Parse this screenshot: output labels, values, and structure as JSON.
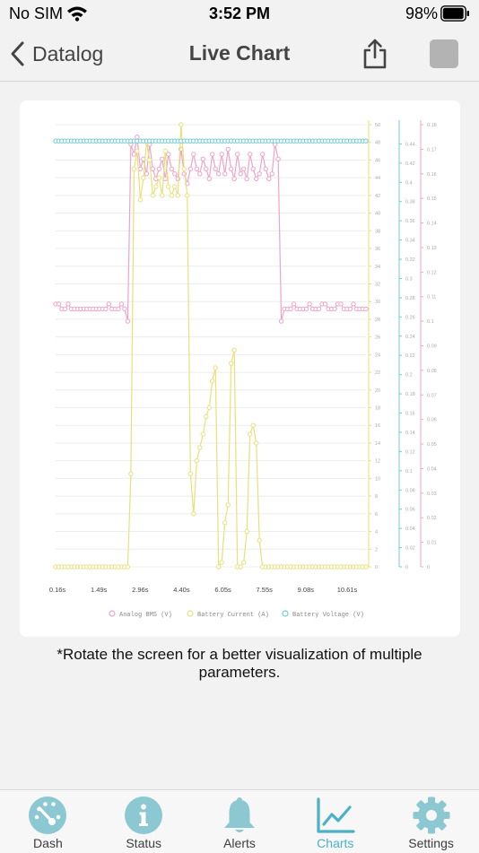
{
  "status_bar": {
    "carrier": "No SIM",
    "time": "3:52 PM",
    "battery_percent": "98%",
    "battery_level": 0.98
  },
  "nav": {
    "back_label": "Datalog",
    "title": "Live Chart",
    "share_icon": "share-icon",
    "stop_icon": "stop-icon"
  },
  "colors": {
    "accent": "#4ab1c7",
    "bms": "#f0a3c8",
    "current": "#e8e07a",
    "voltage": "#6fcbd6",
    "tab_icon": "#8cc8d2"
  },
  "chart_data": {
    "type": "line",
    "x_tick_labels": [
      "0.16s",
      "1.49s",
      "2.96s",
      "4.40s",
      "6.05s",
      "7.55s",
      "9.08s",
      "10.61s"
    ],
    "legend": [
      "Analog BMS (V)",
      "Battery Current (A)",
      "Battery Voltage (V)"
    ],
    "legend_position": "bottom",
    "axes": {
      "current": {
        "ylim": [
          0,
          50
        ],
        "ticks": [
          "0",
          "2",
          "4",
          "6",
          "8",
          "10",
          "12",
          "14",
          "16",
          "18",
          "20",
          "22",
          "24",
          "26",
          "28",
          "30",
          "32",
          "34",
          "36",
          "38",
          "40",
          "42",
          "44",
          "46",
          "48",
          "50"
        ]
      },
      "voltage": {
        "ylim": [
          0,
          0.46
        ],
        "ticks": [
          "0",
          "0.02",
          "0.04",
          "0.06",
          "0.08",
          "0.1",
          "0.12",
          "0.14",
          "0.16",
          "0.18",
          "0.2",
          "0.22",
          "0.24",
          "0.26",
          "0.28",
          "0.3",
          "0.32",
          "0.34",
          "0.36",
          "0.38",
          "0.4",
          "0.42",
          "0.44"
        ]
      },
      "bms": {
        "ylim": [
          0,
          0.18
        ],
        "ticks": [
          "0",
          "0.01",
          "0.02",
          "0.03",
          "0.04",
          "0.05",
          "0.06",
          "0.07",
          "0.08",
          "0.09",
          "0.1",
          "0.11",
          "0.12",
          "0.13",
          "0.14",
          "0.15",
          "0.16",
          "0.17",
          "0.18"
        ]
      }
    },
    "series": [
      {
        "name": "Analog BMS (V)",
        "axis": "bms",
        "values": [
          0.107,
          0.107,
          0.105,
          0.105,
          0.107,
          0.105,
          0.105,
          0.105,
          0.105,
          0.105,
          0.105,
          0.105,
          0.105,
          0.105,
          0.105,
          0.105,
          0.105,
          0.107,
          0.105,
          0.105,
          0.105,
          0.107,
          0.105,
          0.1,
          0.172,
          0.168,
          0.175,
          0.162,
          0.166,
          0.16,
          0.172,
          0.162,
          0.158,
          0.162,
          0.166,
          0.158,
          0.168,
          0.162,
          0.16,
          0.158,
          0.17,
          0.16,
          0.156,
          0.162,
          0.168,
          0.162,
          0.16,
          0.166,
          0.162,
          0.158,
          0.168,
          0.162,
          0.16,
          0.168,
          0.16,
          0.17,
          0.162,
          0.158,
          0.168,
          0.16,
          0.162,
          0.158,
          0.168,
          0.162,
          0.158,
          0.16,
          0.168,
          0.162,
          0.158,
          0.16,
          0.172,
          0.166,
          0.1,
          0.105,
          0.105,
          0.105,
          0.107,
          0.105,
          0.105,
          0.105,
          0.105,
          0.107,
          0.105,
          0.105,
          0.105,
          0.107,
          0.107,
          0.105,
          0.105,
          0.105,
          0.107,
          0.107,
          0.105,
          0.105,
          0.105,
          0.107,
          0.105,
          0.105,
          0.105,
          0.105
        ]
      },
      {
        "name": "Battery Current (A)",
        "axis": "current",
        "values": [
          0,
          0,
          0,
          0,
          0,
          0,
          0,
          0,
          0,
          0,
          0,
          0,
          0,
          0,
          0,
          0,
          0,
          0,
          0,
          0,
          0,
          0,
          0,
          0,
          10.5,
          45,
          47,
          41.5,
          44,
          48,
          46,
          42,
          43,
          44,
          42,
          47,
          43,
          42,
          43,
          42,
          50,
          45,
          42,
          10.5,
          6,
          12,
          13.5,
          15,
          17,
          18,
          21,
          22.5,
          0,
          0.5,
          5,
          7,
          23,
          24.5,
          0,
          0,
          0.5,
          4,
          15,
          16,
          14,
          3,
          0,
          0,
          0,
          0,
          0,
          0,
          0,
          0,
          0,
          0,
          0,
          0,
          0,
          0,
          0,
          0,
          0,
          0,
          0,
          0,
          0,
          0,
          0,
          0,
          0,
          0,
          0,
          0,
          0,
          0,
          0,
          0,
          0,
          0
        ]
      },
      {
        "name": "Battery Voltage (V)",
        "axis": "voltage",
        "values": [
          0.443,
          0.443,
          0.443,
          0.443,
          0.443,
          0.443,
          0.443,
          0.443,
          0.443,
          0.443,
          0.443,
          0.443,
          0.443,
          0.443,
          0.443,
          0.443,
          0.443,
          0.443,
          0.443,
          0.443,
          0.443,
          0.443,
          0.443,
          0.443,
          0.443,
          0.443,
          0.443,
          0.443,
          0.443,
          0.443,
          0.443,
          0.443,
          0.443,
          0.443,
          0.443,
          0.443,
          0.443,
          0.443,
          0.443,
          0.443,
          0.443,
          0.443,
          0.443,
          0.443,
          0.443,
          0.443,
          0.443,
          0.443,
          0.443,
          0.443,
          0.443,
          0.443,
          0.443,
          0.443,
          0.443,
          0.443,
          0.443,
          0.443,
          0.443,
          0.443,
          0.443,
          0.443,
          0.443,
          0.443,
          0.443,
          0.443,
          0.443,
          0.443,
          0.443,
          0.443,
          0.443,
          0.443,
          0.443,
          0.443,
          0.443,
          0.443,
          0.443,
          0.443,
          0.443,
          0.443,
          0.443,
          0.443,
          0.443,
          0.443,
          0.443,
          0.443,
          0.443,
          0.443,
          0.443,
          0.443,
          0.443,
          0.443,
          0.443,
          0.443,
          0.443,
          0.443,
          0.443,
          0.443,
          0.443,
          0.443
        ]
      }
    ]
  },
  "note": "*Rotate the screen for a better visualization of multiple parameters.",
  "tabs": [
    {
      "label": "Dash",
      "icon": "gauge-icon",
      "active": false
    },
    {
      "label": "Status",
      "icon": "info-icon",
      "active": false
    },
    {
      "label": "Alerts",
      "icon": "bell-icon",
      "active": false
    },
    {
      "label": "Charts",
      "icon": "chart-icon",
      "active": true
    },
    {
      "label": "Settings",
      "icon": "gear-icon",
      "active": false
    }
  ]
}
